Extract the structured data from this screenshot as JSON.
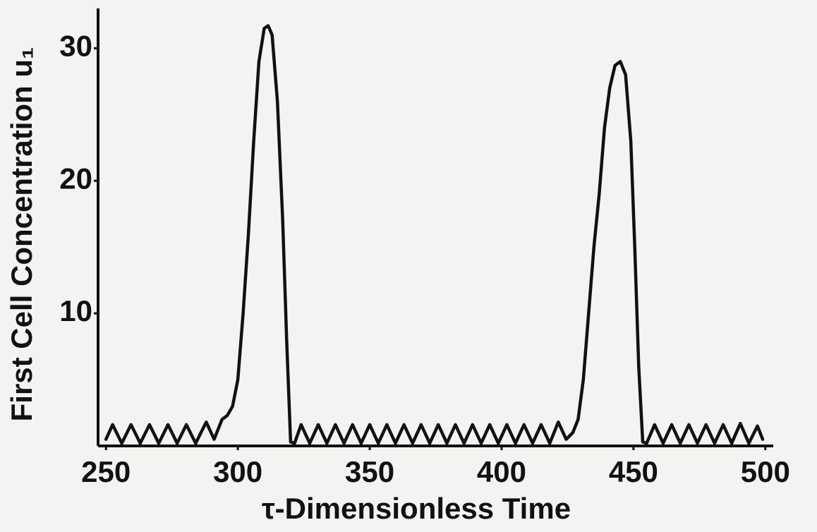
{
  "chart_data": {
    "type": "line",
    "xlabel": "τ-Dimensionless Time",
    "ylabel": "First Cell Concentration u₁",
    "xlim": [
      247,
      503
    ],
    "ylim": [
      0,
      33
    ],
    "xticks": [
      250,
      300,
      350,
      400,
      450,
      500
    ],
    "yticks": [
      10,
      20,
      30
    ],
    "grid": false,
    "series": [
      {
        "color": "#111111",
        "x": [
          250,
          252.5,
          256,
          259.5,
          263,
          266.5,
          270,
          273.5,
          277,
          280.5,
          284,
          288,
          291,
          294,
          296,
          298,
          300,
          302,
          304,
          306,
          308,
          310,
          311.5,
          313,
          315,
          317,
          318.5,
          320,
          321.5,
          324,
          327.25,
          330.5,
          333.75,
          337,
          340.25,
          343.5,
          346.75,
          350,
          353.25,
          356.5,
          359.75,
          363,
          366.25,
          369.5,
          372.75,
          376,
          379.25,
          382.5,
          385.75,
          389,
          392.25,
          395.5,
          398.75,
          402,
          405.25,
          408.5,
          411.75,
          415,
          418.25,
          421.5,
          424.5,
          427,
          429,
          431,
          433,
          435,
          437,
          439,
          441,
          443,
          445,
          447,
          449,
          450.5,
          452,
          453.5,
          455,
          458,
          461.25,
          464.5,
          467.75,
          471,
          474.25,
          477.5,
          480.75,
          484,
          487.25,
          490.5,
          493.75,
          497,
          499
        ],
        "values": [
          0.5,
          1.6,
          0.2,
          1.6,
          0.2,
          1.6,
          0.2,
          1.6,
          0.2,
          1.6,
          0.2,
          1.8,
          0.5,
          2.0,
          2.3,
          3,
          5,
          10,
          16,
          23,
          29,
          31.5,
          31.7,
          31,
          26,
          17,
          8,
          0.3,
          0.2,
          1.6,
          0.2,
          1.6,
          0.2,
          1.6,
          0.2,
          1.6,
          0.2,
          1.6,
          0.2,
          1.6,
          0.2,
          1.6,
          0.2,
          1.6,
          0.2,
          1.6,
          0.2,
          1.6,
          0.2,
          1.6,
          0.2,
          1.6,
          0.2,
          1.6,
          0.2,
          1.6,
          0.2,
          1.6,
          0.2,
          1.8,
          0.5,
          1.0,
          2,
          5,
          10,
          15,
          19,
          24,
          27,
          28.7,
          29,
          28,
          23,
          15,
          6,
          0.3,
          0.2,
          1.6,
          0.2,
          1.6,
          0.2,
          1.6,
          0.2,
          1.6,
          0.2,
          1.6,
          0.2,
          1.7,
          0.2,
          1.5,
          0.5
        ]
      }
    ]
  }
}
